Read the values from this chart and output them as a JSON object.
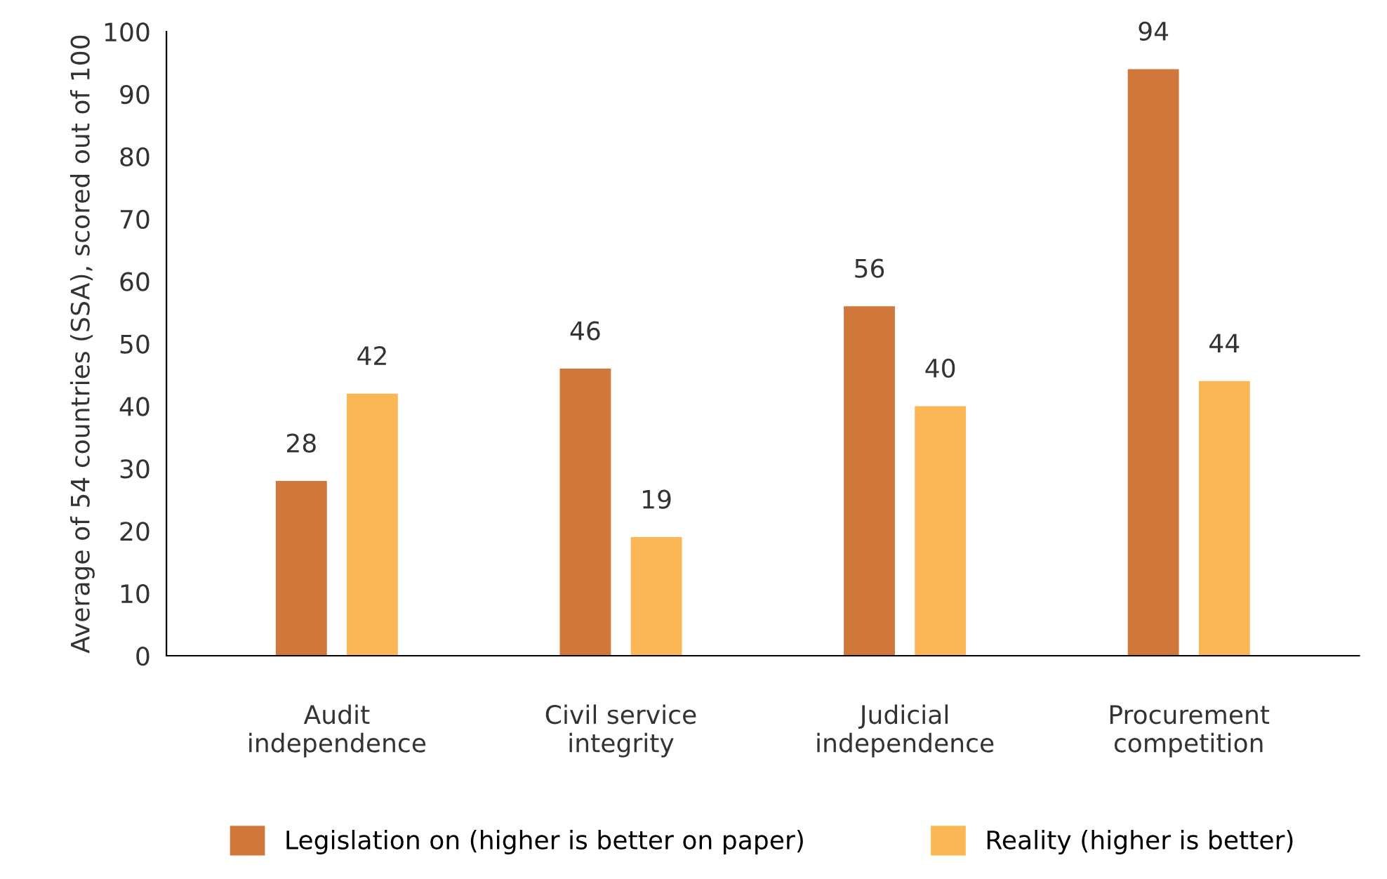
{
  "chart_data": {
    "type": "bar",
    "ylabel": "Average of 54 countries (SSA), scored out of 100",
    "categories": [
      "Audit\nindependence",
      "Civil service\nintegrity",
      "Judicial\nindependence",
      "Procurement\ncompetition"
    ],
    "series": [
      {
        "name": "Legislation on (higher is better on paper)",
        "color": "#d0773b",
        "values": [
          28,
          46,
          56,
          94
        ]
      },
      {
        "name": "Reality (higher is better)",
        "color": "#fbb755",
        "values": [
          42,
          19,
          40,
          44
        ]
      }
    ],
    "ylim": [
      0,
      100
    ],
    "yticks": [
      0,
      10,
      20,
      30,
      40,
      50,
      60,
      70,
      80,
      90,
      100
    ],
    "grid": false,
    "legend": "bottom",
    "data_labels": true
  }
}
